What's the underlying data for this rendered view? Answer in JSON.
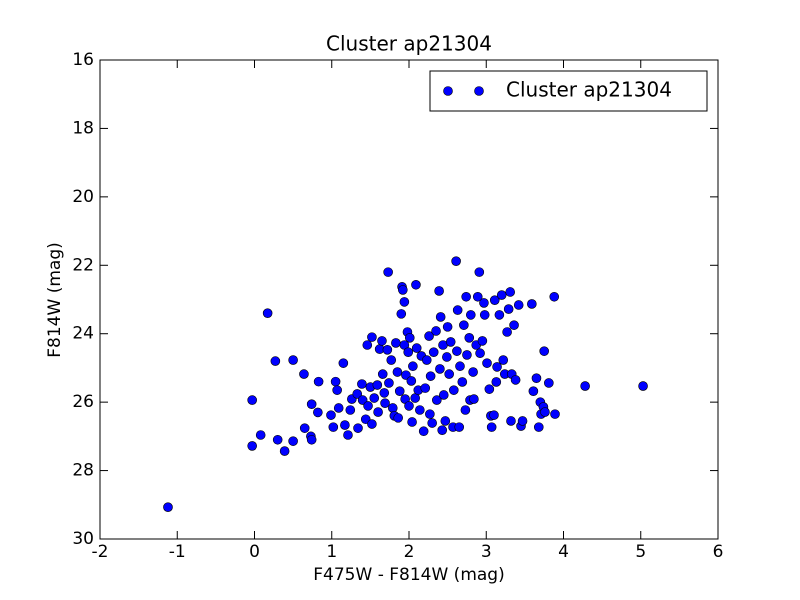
{
  "chart_data": {
    "type": "scatter",
    "title": "Cluster ap21304",
    "x_label": "F475W - F814W (mag)",
    "y_label": "F814W (mag)",
    "xlim": [
      -2,
      6
    ],
    "ylim": [
      30,
      16
    ],
    "xticks": [
      -2,
      -1,
      0,
      1,
      2,
      3,
      4,
      5,
      6
    ],
    "yticks": [
      16,
      18,
      20,
      22,
      24,
      26,
      28,
      30
    ],
    "legend": "upper right",
    "series": [
      {
        "name": "Cluster ap21304",
        "color": "#0000ff",
        "x": [
          -1.12,
          -0.03,
          -0.03,
          0.08,
          0.17,
          0.27,
          0.3,
          0.39,
          0.5,
          0.5,
          0.64,
          0.65,
          0.73,
          0.74,
          0.74,
          0.82,
          0.83,
          0.99,
          1.02,
          1.05,
          1.07,
          1.09,
          1.15,
          1.17,
          1.21,
          1.24,
          1.26,
          1.33,
          1.34,
          1.39,
          1.4,
          1.44,
          1.46,
          1.47,
          1.5,
          1.52,
          1.52,
          1.55,
          1.59,
          1.6,
          1.62,
          1.65,
          1.66,
          1.68,
          1.69,
          1.72,
          1.73,
          1.74,
          1.77,
          1.79,
          1.81,
          1.83,
          1.85,
          1.86,
          1.88,
          1.9,
          1.91,
          1.92,
          1.94,
          1.94,
          1.95,
          1.96,
          1.98,
          1.99,
          2.0,
          2.01,
          2.03,
          2.04,
          2.05,
          2.08,
          2.09,
          2.1,
          2.12,
          2.14,
          2.16,
          2.19,
          2.21,
          2.23,
          2.26,
          2.27,
          2.28,
          2.3,
          2.32,
          2.35,
          2.36,
          2.39,
          2.4,
          2.41,
          2.43,
          2.44,
          2.45,
          2.47,
          2.49,
          2.5,
          2.52,
          2.54,
          2.57,
          2.58,
          2.61,
          2.62,
          2.63,
          2.65,
          2.66,
          2.69,
          2.71,
          2.73,
          2.74,
          2.75,
          2.78,
          2.79,
          2.8,
          2.83,
          2.84,
          2.87,
          2.89,
          2.91,
          2.92,
          2.95,
          2.97,
          2.98,
          3.01,
          3.04,
          3.06,
          3.07,
          3.1,
          3.11,
          3.13,
          3.14,
          3.17,
          3.2,
          3.22,
          3.24,
          3.27,
          3.29,
          3.31,
          3.32,
          3.33,
          3.36,
          3.38,
          3.42,
          3.45,
          3.47,
          3.59,
          3.61,
          3.65,
          3.68,
          3.7,
          3.71,
          3.74,
          3.75,
          3.76,
          3.81,
          3.88,
          3.89,
          4.28,
          5.03
        ],
        "values": [
          29.07,
          25.94,
          27.28,
          26.96,
          23.4,
          24.8,
          27.1,
          27.43,
          27.14,
          24.77,
          25.18,
          26.76,
          27.0,
          26.06,
          27.1,
          26.3,
          25.4,
          26.38,
          26.73,
          25.4,
          25.65,
          26.17,
          24.86,
          26.67,
          26.96,
          26.23,
          25.91,
          25.76,
          26.76,
          25.47,
          25.94,
          26.5,
          24.33,
          26.11,
          25.56,
          24.1,
          26.64,
          25.88,
          25.5,
          26.29,
          24.45,
          24.21,
          25.18,
          25.73,
          26.03,
          24.47,
          22.2,
          25.44,
          24.77,
          26.17,
          26.4,
          24.27,
          25.12,
          26.46,
          25.68,
          23.42,
          22.63,
          22.72,
          23.07,
          24.33,
          25.91,
          25.21,
          23.95,
          24.54,
          26.11,
          24.12,
          25.38,
          26.58,
          24.95,
          25.88,
          22.57,
          24.42,
          25.65,
          26.23,
          24.65,
          26.85,
          25.59,
          24.77,
          24.07,
          26.35,
          25.24,
          26.61,
          24.54,
          23.92,
          25.94,
          22.75,
          25.03,
          23.51,
          26.82,
          24.33,
          25.79,
          26.55,
          24.68,
          23.8,
          25.18,
          24.24,
          26.73,
          25.65,
          21.88,
          24.51,
          23.31,
          26.73,
          24.95,
          25.41,
          23.75,
          26.23,
          22.92,
          24.62,
          24.12,
          25.94,
          23.45,
          25.12,
          25.91,
          24.33,
          22.92,
          22.2,
          24.57,
          24.21,
          23.1,
          23.45,
          24.86,
          25.62,
          26.4,
          26.73,
          26.38,
          23.02,
          25.41,
          24.97,
          23.45,
          22.87,
          24.77,
          25.18,
          23.95,
          23.28,
          22.78,
          26.55,
          25.18,
          23.75,
          25.35,
          23.16,
          26.7,
          26.55,
          23.13,
          25.68,
          25.3,
          26.73,
          26.0,
          26.35,
          26.14,
          24.51,
          26.29,
          25.44,
          22.92,
          26.35,
          25.53,
          25.53
        ]
      }
    ]
  }
}
